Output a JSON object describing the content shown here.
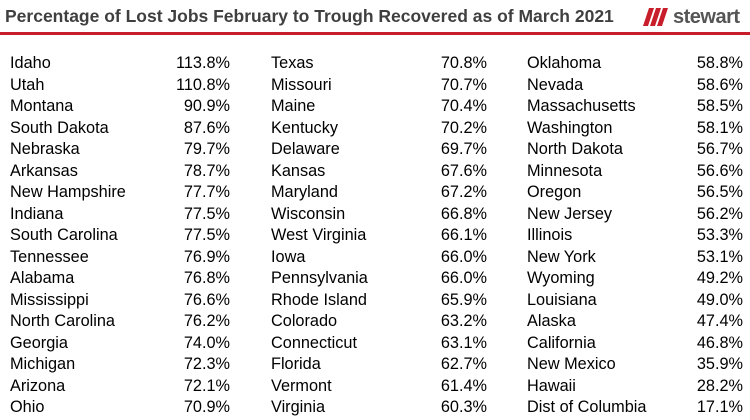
{
  "header": {
    "title": "Percentage of Lost Jobs February to Trough Recovered as of March 2021",
    "logo_text": "stewart",
    "logo_icon": "stewart-logo-icon",
    "accent_color": "#c81e2b"
  },
  "chart_data": {
    "type": "table",
    "title": "Percentage of Lost Jobs February to Trough Recovered as of March 2021",
    "columns": [
      [
        {
          "state": "Idaho",
          "value": "113.8%"
        },
        {
          "state": "Utah",
          "value": "110.8%"
        },
        {
          "state": "Montana",
          "value": "90.9%"
        },
        {
          "state": "South Dakota",
          "value": "87.6%"
        },
        {
          "state": "Nebraska",
          "value": "79.7%"
        },
        {
          "state": "Arkansas",
          "value": "78.7%"
        },
        {
          "state": "New Hampshire",
          "value": "77.7%"
        },
        {
          "state": "Indiana",
          "value": "77.5%"
        },
        {
          "state": "South Carolina",
          "value": "77.5%"
        },
        {
          "state": "Tennessee",
          "value": "76.9%"
        },
        {
          "state": "Alabama",
          "value": "76.8%"
        },
        {
          "state": "Mississippi",
          "value": "76.6%"
        },
        {
          "state": "North Carolina",
          "value": "76.2%"
        },
        {
          "state": "Georgia",
          "value": "74.0%"
        },
        {
          "state": "Michigan",
          "value": "72.3%"
        },
        {
          "state": "Arizona",
          "value": "72.1%"
        },
        {
          "state": "Ohio",
          "value": "70.9%"
        }
      ],
      [
        {
          "state": "Texas",
          "value": "70.8%"
        },
        {
          "state": "Missouri",
          "value": "70.7%"
        },
        {
          "state": "Maine",
          "value": "70.4%"
        },
        {
          "state": "Kentucky",
          "value": "70.2%"
        },
        {
          "state": "Delaware",
          "value": "69.7%"
        },
        {
          "state": "Kansas",
          "value": "67.6%"
        },
        {
          "state": "Maryland",
          "value": "67.2%"
        },
        {
          "state": "Wisconsin",
          "value": "66.8%"
        },
        {
          "state": "West Virginia",
          "value": "66.1%"
        },
        {
          "state": "Iowa",
          "value": "66.0%"
        },
        {
          "state": "Pennsylvania",
          "value": "66.0%"
        },
        {
          "state": "Rhode Island",
          "value": "65.9%"
        },
        {
          "state": "Colorado",
          "value": "63.2%"
        },
        {
          "state": "Connecticut",
          "value": "63.1%"
        },
        {
          "state": "Florida",
          "value": "62.7%"
        },
        {
          "state": "Vermont",
          "value": "61.4%"
        },
        {
          "state": "Virginia",
          "value": "60.3%"
        }
      ],
      [
        {
          "state": "Oklahoma",
          "value": "58.8%"
        },
        {
          "state": "Nevada",
          "value": "58.6%"
        },
        {
          "state": "Massachusetts",
          "value": "58.5%"
        },
        {
          "state": "Washington",
          "value": "58.1%"
        },
        {
          "state": "North Dakota",
          "value": "56.7%"
        },
        {
          "state": "Minnesota",
          "value": "56.6%"
        },
        {
          "state": "Oregon",
          "value": "56.5%"
        },
        {
          "state": "New Jersey",
          "value": "56.2%"
        },
        {
          "state": "Illinois",
          "value": "53.3%"
        },
        {
          "state": "New York",
          "value": "53.1%"
        },
        {
          "state": "Wyoming",
          "value": "49.2%"
        },
        {
          "state": "Louisiana",
          "value": "49.0%"
        },
        {
          "state": "Alaska",
          "value": "47.4%"
        },
        {
          "state": "California",
          "value": "46.8%"
        },
        {
          "state": "New Mexico",
          "value": "35.9%"
        },
        {
          "state": "Hawaii",
          "value": "28.2%"
        },
        {
          "state": "Dist of Columbia",
          "value": "17.1%"
        }
      ]
    ]
  }
}
